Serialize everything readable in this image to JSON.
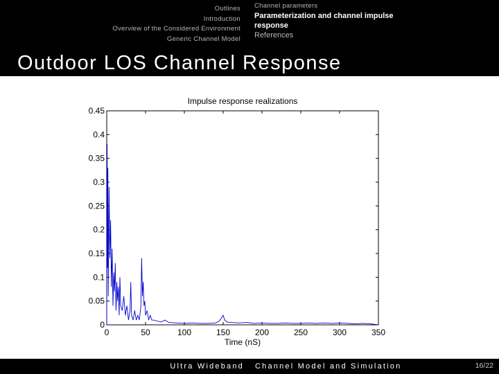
{
  "header": {
    "nav_left": [
      "Outlines",
      "Introduction",
      "Overview of the Considered Environment",
      "Generic Channel Model"
    ],
    "section_small": "Channel parameters",
    "section_active": "Parameterization and channel impulse response",
    "section_dim": "References"
  },
  "slide": {
    "title": "Outdoor LOS Channel Response"
  },
  "footer": {
    "left": "Ultra Wideband",
    "middle": "Channel Model and Simulation",
    "page": "16/22"
  },
  "colors": {
    "bar": "#000000",
    "line": "#0000cc"
  },
  "chart_data": {
    "type": "line",
    "title": "Impulse response realizations",
    "xlabel": "Time (nS)",
    "ylabel": "",
    "xlim": [
      0,
      350
    ],
    "ylim": [
      0,
      0.45
    ],
    "xticks": [
      0,
      50,
      100,
      150,
      200,
      250,
      300,
      350
    ],
    "yticks": [
      0,
      0.05,
      0.1,
      0.15,
      0.2,
      0.25,
      0.3,
      0.35,
      0.4,
      0.45
    ],
    "ytick_labels": [
      "0",
      "0.05",
      "0.1",
      "0.15",
      "0.2",
      "0.25",
      "0.3",
      "0.35",
      "0.4",
      "0.45"
    ],
    "grid": false,
    "series": [
      {
        "x": [
          0,
          0.5,
          1,
          1.5,
          2,
          3,
          4,
          5,
          6,
          7,
          8,
          9,
          10,
          11,
          12,
          13,
          14,
          15,
          16,
          17,
          18,
          20,
          22,
          24,
          26,
          28,
          30,
          31,
          32,
          34,
          36,
          38,
          40,
          42,
          44,
          45,
          46,
          47,
          48,
          49,
          50,
          52,
          54,
          56,
          58,
          60,
          65,
          70,
          75,
          80,
          90,
          100,
          110,
          120,
          130,
          140,
          145,
          148,
          150,
          152,
          155,
          160,
          170,
          180,
          190,
          200,
          210,
          220,
          230,
          240,
          250,
          260,
          270,
          280,
          290,
          300,
          310,
          320,
          330,
          340,
          350
        ],
        "y": [
          0,
          0.38,
          0.12,
          0.33,
          0.06,
          0.29,
          0.14,
          0.22,
          0.08,
          0.16,
          0.04,
          0.11,
          0.07,
          0.13,
          0.03,
          0.09,
          0.05,
          0.08,
          0.02,
          0.1,
          0.04,
          0.03,
          0.06,
          0.02,
          0.04,
          0.01,
          0.03,
          0.09,
          0.02,
          0.01,
          0.03,
          0.01,
          0.02,
          0.01,
          0.04,
          0.14,
          0.06,
          0.09,
          0.04,
          0.05,
          0.02,
          0.03,
          0.01,
          0.02,
          0.01,
          0.01,
          0.008,
          0.006,
          0.01,
          0.005,
          0.004,
          0.003,
          0.004,
          0.003,
          0.003,
          0.004,
          0.008,
          0.015,
          0.02,
          0.01,
          0.006,
          0.005,
          0.004,
          0.005,
          0.003,
          0.004,
          0.003,
          0.003,
          0.004,
          0.003,
          0.003,
          0.004,
          0.003,
          0.004,
          0.003,
          0.004,
          0.003,
          0.002,
          0.003,
          0.002,
          0
        ]
      }
    ]
  }
}
